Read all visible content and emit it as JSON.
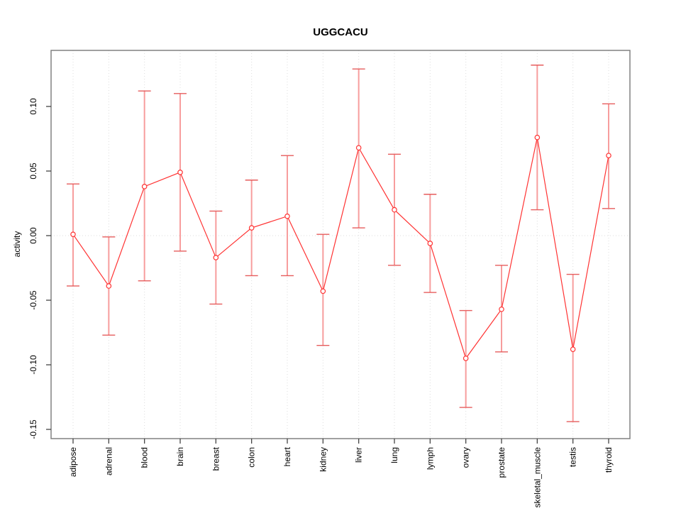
{
  "chart_data": {
    "type": "line",
    "title": "UGGCACU",
    "xlabel": "",
    "ylabel": "activity",
    "legend": "none",
    "grid": "dotted light-gray vertical line at every category; dotted horizontal line at y=0",
    "ylim": [
      -0.157,
      0.143
    ],
    "yticks": [
      0.1,
      0.05,
      0.0,
      -0.05,
      -0.1,
      -0.15
    ],
    "ytick_labels": [
      "0.10",
      "0.05",
      "0.00",
      "-0.05",
      "-0.10",
      "-0.15"
    ],
    "categories": [
      "adipose",
      "adrenal",
      "blood",
      "brain",
      "breast",
      "colon",
      "heart",
      "kidney",
      "liver",
      "lung",
      "lymph",
      "ovary",
      "prostate",
      "skeletal_muscle",
      "testis",
      "thyroid"
    ],
    "series": [
      {
        "name": "activity",
        "marker": "open-circle",
        "values": [
          0.001,
          -0.039,
          0.038,
          0.049,
          -0.017,
          0.006,
          0.015,
          -0.043,
          0.068,
          0.02,
          -0.006,
          -0.095,
          -0.057,
          0.076,
          -0.088,
          0.062
        ],
        "error_upper": [
          0.04,
          -0.001,
          0.112,
          0.11,
          0.019,
          0.043,
          0.062,
          0.001,
          0.129,
          0.063,
          0.032,
          -0.058,
          -0.023,
          0.132,
          -0.03,
          0.102
        ],
        "error_lower": [
          -0.039,
          -0.077,
          -0.035,
          -0.012,
          -0.053,
          -0.031,
          -0.031,
          -0.085,
          0.006,
          -0.023,
          -0.044,
          -0.133,
          -0.09,
          0.02,
          -0.144,
          0.021
        ]
      }
    ],
    "colors": {
      "line": "#ff3333",
      "point_stroke": "#ff3333",
      "point_fill": "#ffffff",
      "error_stem": "#f79d9d",
      "error_cap": "#e65c5c",
      "grid": "#dcdcdc",
      "box_border": "#808080",
      "tick": "#444444",
      "text": "#000000"
    }
  }
}
